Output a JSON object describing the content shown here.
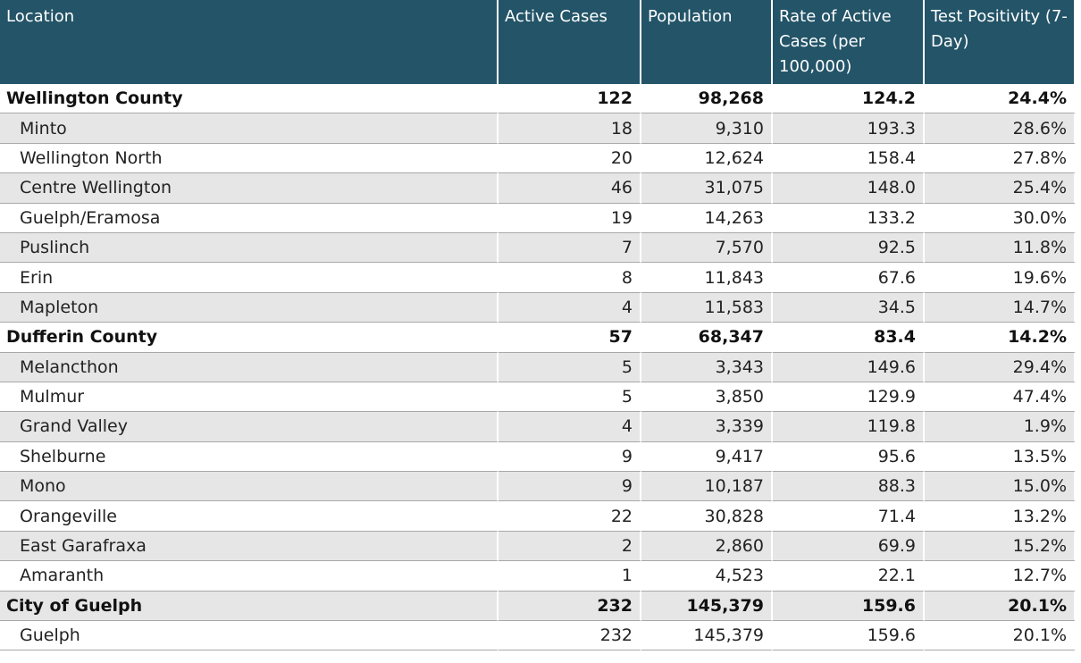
{
  "table": {
    "columns": [
      "Location",
      "Active Cases",
      "Population",
      "Rate of Active Cases (per 100,000)",
      "Test Positivity (7-Day)"
    ],
    "groups": [
      {
        "row": [
          "Wellington County",
          "122",
          "98,268",
          "124.2",
          "24.4%"
        ],
        "children": [
          [
            "Minto",
            "18",
            "9,310",
            "193.3",
            "28.6%"
          ],
          [
            "Wellington North",
            "20",
            "12,624",
            "158.4",
            "27.8%"
          ],
          [
            "Centre Wellington",
            "46",
            "31,075",
            "148.0",
            "25.4%"
          ],
          [
            "Guelph/Eramosa",
            "19",
            "14,263",
            "133.2",
            "30.0%"
          ],
          [
            "Puslinch",
            "7",
            "7,570",
            "92.5",
            "11.8%"
          ],
          [
            "Erin",
            "8",
            "11,843",
            "67.6",
            "19.6%"
          ],
          [
            "Mapleton",
            "4",
            "11,583",
            "34.5",
            "14.7%"
          ]
        ]
      },
      {
        "row": [
          "Dufferin County",
          "57",
          "68,347",
          "83.4",
          "14.2%"
        ],
        "children": [
          [
            "Melancthon",
            "5",
            "3,343",
            "149.6",
            "29.4%"
          ],
          [
            "Mulmur",
            "5",
            "3,850",
            "129.9",
            "47.4%"
          ],
          [
            "Grand Valley",
            "4",
            "3,339",
            "119.8",
            "1.9%"
          ],
          [
            "Shelburne",
            "9",
            "9,417",
            "95.6",
            "13.5%"
          ],
          [
            "Mono",
            "9",
            "10,187",
            "88.3",
            "15.0%"
          ],
          [
            "Orangeville",
            "22",
            "30,828",
            "71.4",
            "13.2%"
          ],
          [
            "East Garafraxa",
            "2",
            "2,860",
            "69.9",
            "15.2%"
          ],
          [
            "Amaranth",
            "1",
            "4,523",
            "22.1",
            "12.7%"
          ]
        ]
      },
      {
        "row": [
          "City of Guelph",
          "232",
          "145,379",
          "159.6",
          "20.1%"
        ],
        "children": [
          [
            "Guelph",
            "232",
            "145,379",
            "159.6",
            "20.1%"
          ]
        ]
      }
    ]
  }
}
